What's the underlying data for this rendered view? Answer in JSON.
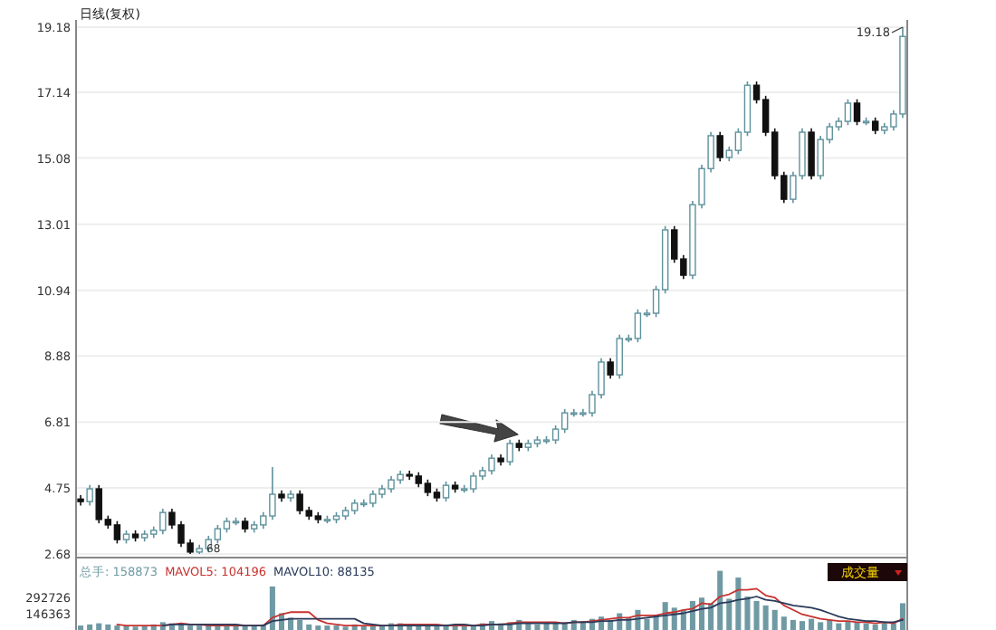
{
  "chart_data": [
    {
      "type": "candlestick",
      "title": "日线(复权)",
      "categories": [
        null,
        null,
        null,
        null,
        null,
        null,
        null,
        null,
        null,
        null,
        null,
        null,
        null,
        null,
        null,
        null,
        null,
        null,
        null,
        null,
        null,
        null,
        null,
        null,
        null,
        null,
        null,
        null,
        null,
        null,
        null,
        null,
        null,
        null,
        null,
        null,
        null,
        null,
        null,
        null,
        null,
        null,
        null,
        null,
        null,
        null,
        null,
        null,
        null,
        null,
        null,
        null,
        null,
        null,
        null,
        null,
        null,
        null,
        null,
        null,
        null,
        null,
        null,
        null,
        null,
        null,
        null,
        null,
        null,
        null,
        null,
        null,
        null,
        null,
        null,
        null,
        null,
        null,
        null,
        null,
        null,
        null,
        null,
        null,
        null,
        null,
        null,
        null,
        null,
        null,
        null
      ],
      "colors": [
        "#111111",
        "#5f929c",
        "#111111",
        "#111111",
        "#111111",
        "#5f929c",
        "#111111",
        "#5f929c",
        "#5f929c",
        "#5f929c",
        "#111111",
        "#111111",
        "#111111",
        "#5f929c",
        "#5f929c",
        "#5f929c",
        "#5f929c",
        "#5f929c",
        "#111111",
        "#5f929c",
        "#5f929c",
        "#5f929c",
        "#111111",
        "#5f929c",
        "#111111",
        "#111111",
        "#111111",
        "#5f929c",
        "#5f929c",
        "#5f929c",
        "#5f929c",
        "#5f929c",
        "#5f929c",
        "#5f929c",
        "#5f929c",
        "#5f929c",
        "#111111",
        "#111111",
        "#111111",
        "#111111",
        "#5f929c",
        "#111111",
        "#5f929c",
        "#5f929c",
        "#5f929c",
        "#5f929c",
        "#111111",
        "#5f929c",
        "#111111",
        "#5f929c",
        "#5f929c",
        "#5f929c",
        "#5f929c",
        "#5f929c",
        "#5f929c",
        "#5f929c",
        "#5f929c",
        "#5f929c",
        "#111111",
        "#5f929c",
        "#5f929c",
        "#5f929c",
        "#5f929c",
        "#5f929c",
        "#5f929c",
        "#111111",
        "#111111",
        "#5f929c",
        "#5f929c",
        "#5f929c",
        "#111111",
        "#5f929c",
        "#5f929c",
        "#5f929c",
        "#111111",
        "#111111",
        "#111111",
        "#111111",
        "#5f929c",
        "#5f929c",
        "#111111",
        "#5f929c",
        "#5f929c",
        "#5f929c",
        "#5f929c",
        "#111111",
        "#5f929c",
        "#111111",
        "#5f929c",
        "#5f929c",
        "#5f929c"
      ],
      "ohlc": [
        [
          4.4,
          4.52,
          4.2,
          4.32
        ],
        [
          4.32,
          4.84,
          4.2,
          4.72
        ],
        [
          4.72,
          4.84,
          3.64,
          3.76
        ],
        [
          3.76,
          3.88,
          3.47,
          3.59
        ],
        [
          3.59,
          3.71,
          3.01,
          3.13
        ],
        [
          3.13,
          3.42,
          3.01,
          3.3
        ],
        [
          3.3,
          3.42,
          3.07,
          3.19
        ],
        [
          3.19,
          3.42,
          3.07,
          3.3
        ],
        [
          3.3,
          3.54,
          3.18,
          3.42
        ],
        [
          3.42,
          4.1,
          3.3,
          3.98
        ],
        [
          3.98,
          4.1,
          3.47,
          3.59
        ],
        [
          3.59,
          3.71,
          2.9,
          3.02
        ],
        [
          3.02,
          3.14,
          2.68,
          2.74
        ],
        [
          2.74,
          2.97,
          2.68,
          2.85
        ],
        [
          2.85,
          3.25,
          2.73,
          3.13
        ],
        [
          3.13,
          3.59,
          3.01,
          3.47
        ],
        [
          3.47,
          3.82,
          3.35,
          3.7
        ],
        [
          3.7,
          3.82,
          3.58,
          3.7
        ],
        [
          3.7,
          3.82,
          3.35,
          3.47
        ],
        [
          3.47,
          3.71,
          3.35,
          3.59
        ],
        [
          3.59,
          3.99,
          3.47,
          3.87
        ],
        [
          3.87,
          5.4,
          3.75,
          4.55
        ],
        [
          4.55,
          4.67,
          4.32,
          4.44
        ],
        [
          4.44,
          4.67,
          4.32,
          4.55
        ],
        [
          4.55,
          4.67,
          3.92,
          4.04
        ],
        [
          4.04,
          4.16,
          3.75,
          3.87
        ],
        [
          3.87,
          3.99,
          3.64,
          3.76
        ],
        [
          3.76,
          3.88,
          3.64,
          3.76
        ],
        [
          3.76,
          3.99,
          3.64,
          3.87
        ],
        [
          3.87,
          4.16,
          3.75,
          4.04
        ],
        [
          4.04,
          4.39,
          3.92,
          4.27
        ],
        [
          4.27,
          4.39,
          4.15,
          4.27
        ],
        [
          4.27,
          4.67,
          4.15,
          4.55
        ],
        [
          4.55,
          4.84,
          4.43,
          4.72
        ],
        [
          4.72,
          5.12,
          4.6,
          5.0
        ],
        [
          5.0,
          5.29,
          4.88,
          5.17
        ],
        [
          5.17,
          5.29,
          5.0,
          5.12
        ],
        [
          5.12,
          5.24,
          4.77,
          4.89
        ],
        [
          4.89,
          5.01,
          4.49,
          4.61
        ],
        [
          4.61,
          4.73,
          4.32,
          4.44
        ],
        [
          4.44,
          4.95,
          4.32,
          4.83
        ],
        [
          4.83,
          4.95,
          4.6,
          4.72
        ],
        [
          4.72,
          4.84,
          4.6,
          4.72
        ],
        [
          4.72,
          5.24,
          4.6,
          5.12
        ],
        [
          5.12,
          5.41,
          5.0,
          5.29
        ],
        [
          5.29,
          5.8,
          5.17,
          5.68
        ],
        [
          5.68,
          5.8,
          5.45,
          5.57
        ],
        [
          5.57,
          6.26,
          5.45,
          6.14
        ],
        [
          6.14,
          6.26,
          5.9,
          6.02
        ],
        [
          6.02,
          6.26,
          5.9,
          6.14
        ],
        [
          6.14,
          6.37,
          6.02,
          6.25
        ],
        [
          6.25,
          6.37,
          6.13,
          6.25
        ],
        [
          6.25,
          6.71,
          6.13,
          6.59
        ],
        [
          6.59,
          7.22,
          6.47,
          7.1
        ],
        [
          7.1,
          7.22,
          6.98,
          7.1
        ],
        [
          7.1,
          7.22,
          6.98,
          7.1
        ],
        [
          7.1,
          7.79,
          6.98,
          7.67
        ],
        [
          7.67,
          8.81,
          7.55,
          8.69
        ],
        [
          8.69,
          8.81,
          8.17,
          8.29
        ],
        [
          8.29,
          9.55,
          8.17,
          9.43
        ],
        [
          9.43,
          9.55,
          9.31,
          9.43
        ],
        [
          9.43,
          10.34,
          9.31,
          10.22
        ],
        [
          10.22,
          10.34,
          10.1,
          10.22
        ],
        [
          10.22,
          11.08,
          10.1,
          10.96
        ],
        [
          10.96,
          12.95,
          10.84,
          12.83
        ],
        [
          12.83,
          12.95,
          11.8,
          11.92
        ],
        [
          11.92,
          12.04,
          11.29,
          11.41
        ],
        [
          11.41,
          13.74,
          11.29,
          13.62
        ],
        [
          13.62,
          14.87,
          13.5,
          14.75
        ],
        [
          14.75,
          15.9,
          14.63,
          15.78
        ],
        [
          15.78,
          15.9,
          14.98,
          15.1
        ],
        [
          15.1,
          15.44,
          14.98,
          15.32
        ],
        [
          15.32,
          16.01,
          15.2,
          15.89
        ],
        [
          15.89,
          17.48,
          15.77,
          17.36
        ],
        [
          17.36,
          17.48,
          16.79,
          16.91
        ],
        [
          16.91,
          17.03,
          15.77,
          15.89
        ],
        [
          15.89,
          16.01,
          14.41,
          14.53
        ],
        [
          14.53,
          14.65,
          13.67,
          13.79
        ],
        [
          13.79,
          14.65,
          13.67,
          14.53
        ],
        [
          14.53,
          16.01,
          14.41,
          15.89
        ],
        [
          15.89,
          16.01,
          14.41,
          14.53
        ],
        [
          14.53,
          15.78,
          14.41,
          15.66
        ],
        [
          15.66,
          16.18,
          15.54,
          16.06
        ],
        [
          16.06,
          16.35,
          15.94,
          16.23
        ],
        [
          16.23,
          16.92,
          16.11,
          16.8
        ],
        [
          16.8,
          16.92,
          16.11,
          16.23
        ],
        [
          16.23,
          16.35,
          16.11,
          16.23
        ],
        [
          16.23,
          16.35,
          15.83,
          15.95
        ],
        [
          15.95,
          16.18,
          15.83,
          16.06
        ],
        [
          16.06,
          16.58,
          15.94,
          16.46
        ],
        [
          16.46,
          19.18,
          16.34,
          18.89
        ]
      ],
      "ylim": [
        2.68,
        19.18
      ],
      "yticks": [
        2.68,
        4.75,
        6.81,
        8.88,
        10.94,
        13.01,
        15.08,
        17.14,
        19.18
      ],
      "grid": "y",
      "tick_labels": "y",
      "annotations": [
        "19.18",
        {
          "text": "68",
          "y": 2.68
        }
      ]
    },
    {
      "type": "bar",
      "categories": [
        null,
        null,
        null,
        null,
        null,
        null,
        null,
        null,
        null,
        null,
        null,
        null,
        null,
        null,
        null,
        null,
        null,
        null,
        null,
        null,
        null,
        null,
        null,
        null,
        null,
        null,
        null,
        null,
        null,
        null,
        null,
        null,
        null,
        null,
        null,
        null,
        null,
        null,
        null,
        null,
        null,
        null,
        null,
        null,
        null,
        null,
        null,
        null,
        null,
        null,
        null,
        null,
        null,
        null,
        null,
        null,
        null,
        null,
        null,
        null,
        null,
        null,
        null,
        null,
        null,
        null,
        null,
        null,
        null,
        null,
        null,
        null,
        null,
        null,
        null,
        null,
        null,
        null,
        null,
        null,
        null,
        null,
        null,
        null,
        null,
        null,
        null,
        null,
        null,
        null,
        null
      ],
      "series": [
        {
          "name": "总手: 158873",
          "color": "#6f9aa4",
          "values": [
            40000,
            50000,
            60000,
            50000,
            40000,
            40000,
            30000,
            40000,
            50000,
            70000,
            60000,
            50000,
            40000,
            40000,
            50000,
            50000,
            40000,
            50000,
            40000,
            40000,
            50000,
            390000,
            150000,
            110000,
            90000,
            50000,
            40000,
            40000,
            40000,
            30000,
            50000,
            40000,
            50000,
            40000,
            60000,
            60000,
            50000,
            40000,
            40000,
            40000,
            50000,
            50000,
            40000,
            40000,
            60000,
            80000,
            60000,
            70000,
            90000,
            60000,
            50000,
            70000,
            60000,
            70000,
            90000,
            80000,
            100000,
            120000,
            90000,
            150000,
            110000,
            180000,
            100000,
            130000,
            250000,
            200000,
            180000,
            260000,
            290000,
            240000,
            530000,
            280000,
            470000,
            300000,
            260000,
            220000,
            180000,
            120000,
            90000,
            80000,
            100000,
            70000,
            90000,
            60000,
            80000,
            70000,
            60000,
            50000,
            70000,
            60000,
            240000
          ]
        },
        {
          "name": "MAVOL5: 104196",
          "type": "line",
          "color": "#c8322f",
          "values": [
            null,
            null,
            null,
            null,
            50000,
            40000,
            40000,
            40000,
            40000,
            40000,
            50000,
            60000,
            50000,
            50000,
            40000,
            40000,
            40000,
            40000,
            40000,
            40000,
            40000,
            110000,
            140000,
            160000,
            160000,
            160000,
            90000,
            60000,
            50000,
            40000,
            40000,
            40000,
            40000,
            40000,
            40000,
            50000,
            50000,
            50000,
            50000,
            50000,
            40000,
            40000,
            40000,
            40000,
            50000,
            50000,
            50000,
            60000,
            70000,
            70000,
            70000,
            70000,
            70000,
            60000,
            70000,
            70000,
            80000,
            90000,
            100000,
            110000,
            110000,
            130000,
            130000,
            130000,
            150000,
            160000,
            180000,
            190000,
            240000,
            230000,
            300000,
            320000,
            360000,
            360000,
            370000,
            310000,
            290000,
            220000,
            180000,
            140000,
            120000,
            100000,
            90000,
            80000,
            80000,
            70000,
            70000,
            60000,
            70000,
            60000,
            100000
          ]
        },
        {
          "name": "MAVOL10: 88135",
          "type": "line",
          "color": "#2a3a5a",
          "values": [
            null,
            null,
            null,
            null,
            null,
            null,
            null,
            null,
            null,
            40000,
            50000,
            50000,
            50000,
            50000,
            50000,
            50000,
            50000,
            50000,
            40000,
            40000,
            40000,
            80000,
            90000,
            100000,
            100000,
            100000,
            100000,
            100000,
            100000,
            100000,
            100000,
            60000,
            50000,
            40000,
            40000,
            40000,
            40000,
            40000,
            40000,
            40000,
            40000,
            50000,
            50000,
            40000,
            40000,
            50000,
            50000,
            50000,
            60000,
            60000,
            60000,
            60000,
            60000,
            60000,
            70000,
            70000,
            70000,
            80000,
            80000,
            90000,
            90000,
            100000,
            110000,
            120000,
            130000,
            140000,
            150000,
            170000,
            190000,
            200000,
            240000,
            250000,
            270000,
            280000,
            300000,
            270000,
            260000,
            240000,
            220000,
            210000,
            200000,
            180000,
            150000,
            120000,
            100000,
            90000,
            80000,
            80000,
            70000,
            70000,
            90000
          ]
        }
      ],
      "ylim": [
        0,
        600000
      ],
      "yticks": [
        146363,
        292726
      ],
      "tick_labels": "y",
      "legend": "top left",
      "annotations": [
        "成交量"
      ]
    }
  ]
}
